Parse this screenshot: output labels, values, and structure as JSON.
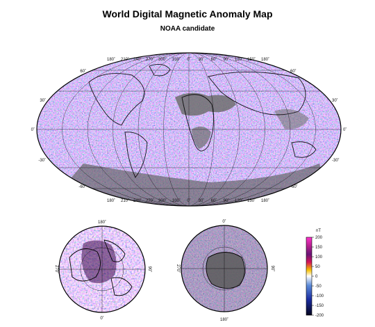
{
  "title": "World Digital Magnetic Anomaly Map",
  "subtitle": "NOAA candidate",
  "main_map": {
    "top_lon_labels": [
      "180˚",
      "210˚",
      "240˚",
      "270˚",
      "300˚",
      "330˚",
      "0˚",
      "30˚",
      "60˚",
      "90˚",
      "120˚",
      "150˚",
      "180˚"
    ],
    "bottom_lon_labels": [
      "180˚",
      "210˚",
      "240˚",
      "270˚",
      "300˚",
      "330˚",
      "0˚",
      "30˚",
      "60˚",
      "90˚",
      "120˚",
      "150˚",
      "180˚"
    ],
    "left_lat_labels": [
      "60˚",
      "30˚",
      "0˚",
      "-30˚",
      "-60˚"
    ],
    "right_lat_labels": [
      "60˚",
      "30˚",
      "0˚",
      "-30˚",
      "-60˚"
    ]
  },
  "north_polar": {
    "top": "180˚",
    "bottom": "0˚",
    "left": "270˚",
    "right": "90˚"
  },
  "south_polar": {
    "top": "0˚",
    "bottom": "180˚",
    "left": "270˚",
    "right": "90˚"
  },
  "legend": {
    "unit": "nT",
    "ticks": [
      "200",
      "150",
      "100",
      "50",
      "0",
      "-50",
      "-100",
      "-150",
      "-200"
    ],
    "colors": [
      "#ff33cc",
      "#b0208c",
      "#6a1478",
      "#d4145a",
      "#f6c000",
      "#ffffff",
      "#5a8ad8",
      "#1a2ca0",
      "#05051e"
    ]
  }
}
